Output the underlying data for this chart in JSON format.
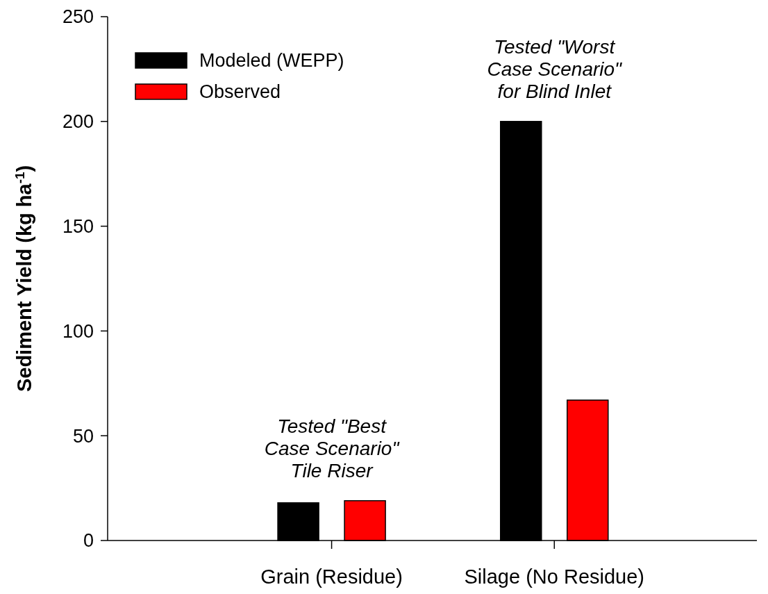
{
  "chart_data": {
    "type": "bar",
    "ylabel": "Sediment Yield (kg ha$^{-1}$)",
    "categories": [
      "Grain (Residue)",
      "Silage (No Residue)"
    ],
    "series": [
      {
        "name": "Modeled (WEPP)",
        "color": "#000000",
        "values": [
          18,
          200
        ]
      },
      {
        "name": "Observed",
        "color": "#ff0000",
        "values": [
          19,
          67
        ]
      }
    ],
    "ylim": [
      0,
      250
    ],
    "yticks": [
      0,
      50,
      100,
      150,
      200,
      250
    ],
    "legend": "top left",
    "annotations": [
      "Tested \"Best\nCase Scenario\"\nTile Riser",
      "Tested \"Worst\nCase Scenario\"\nfor Blind Inlet"
    ]
  }
}
